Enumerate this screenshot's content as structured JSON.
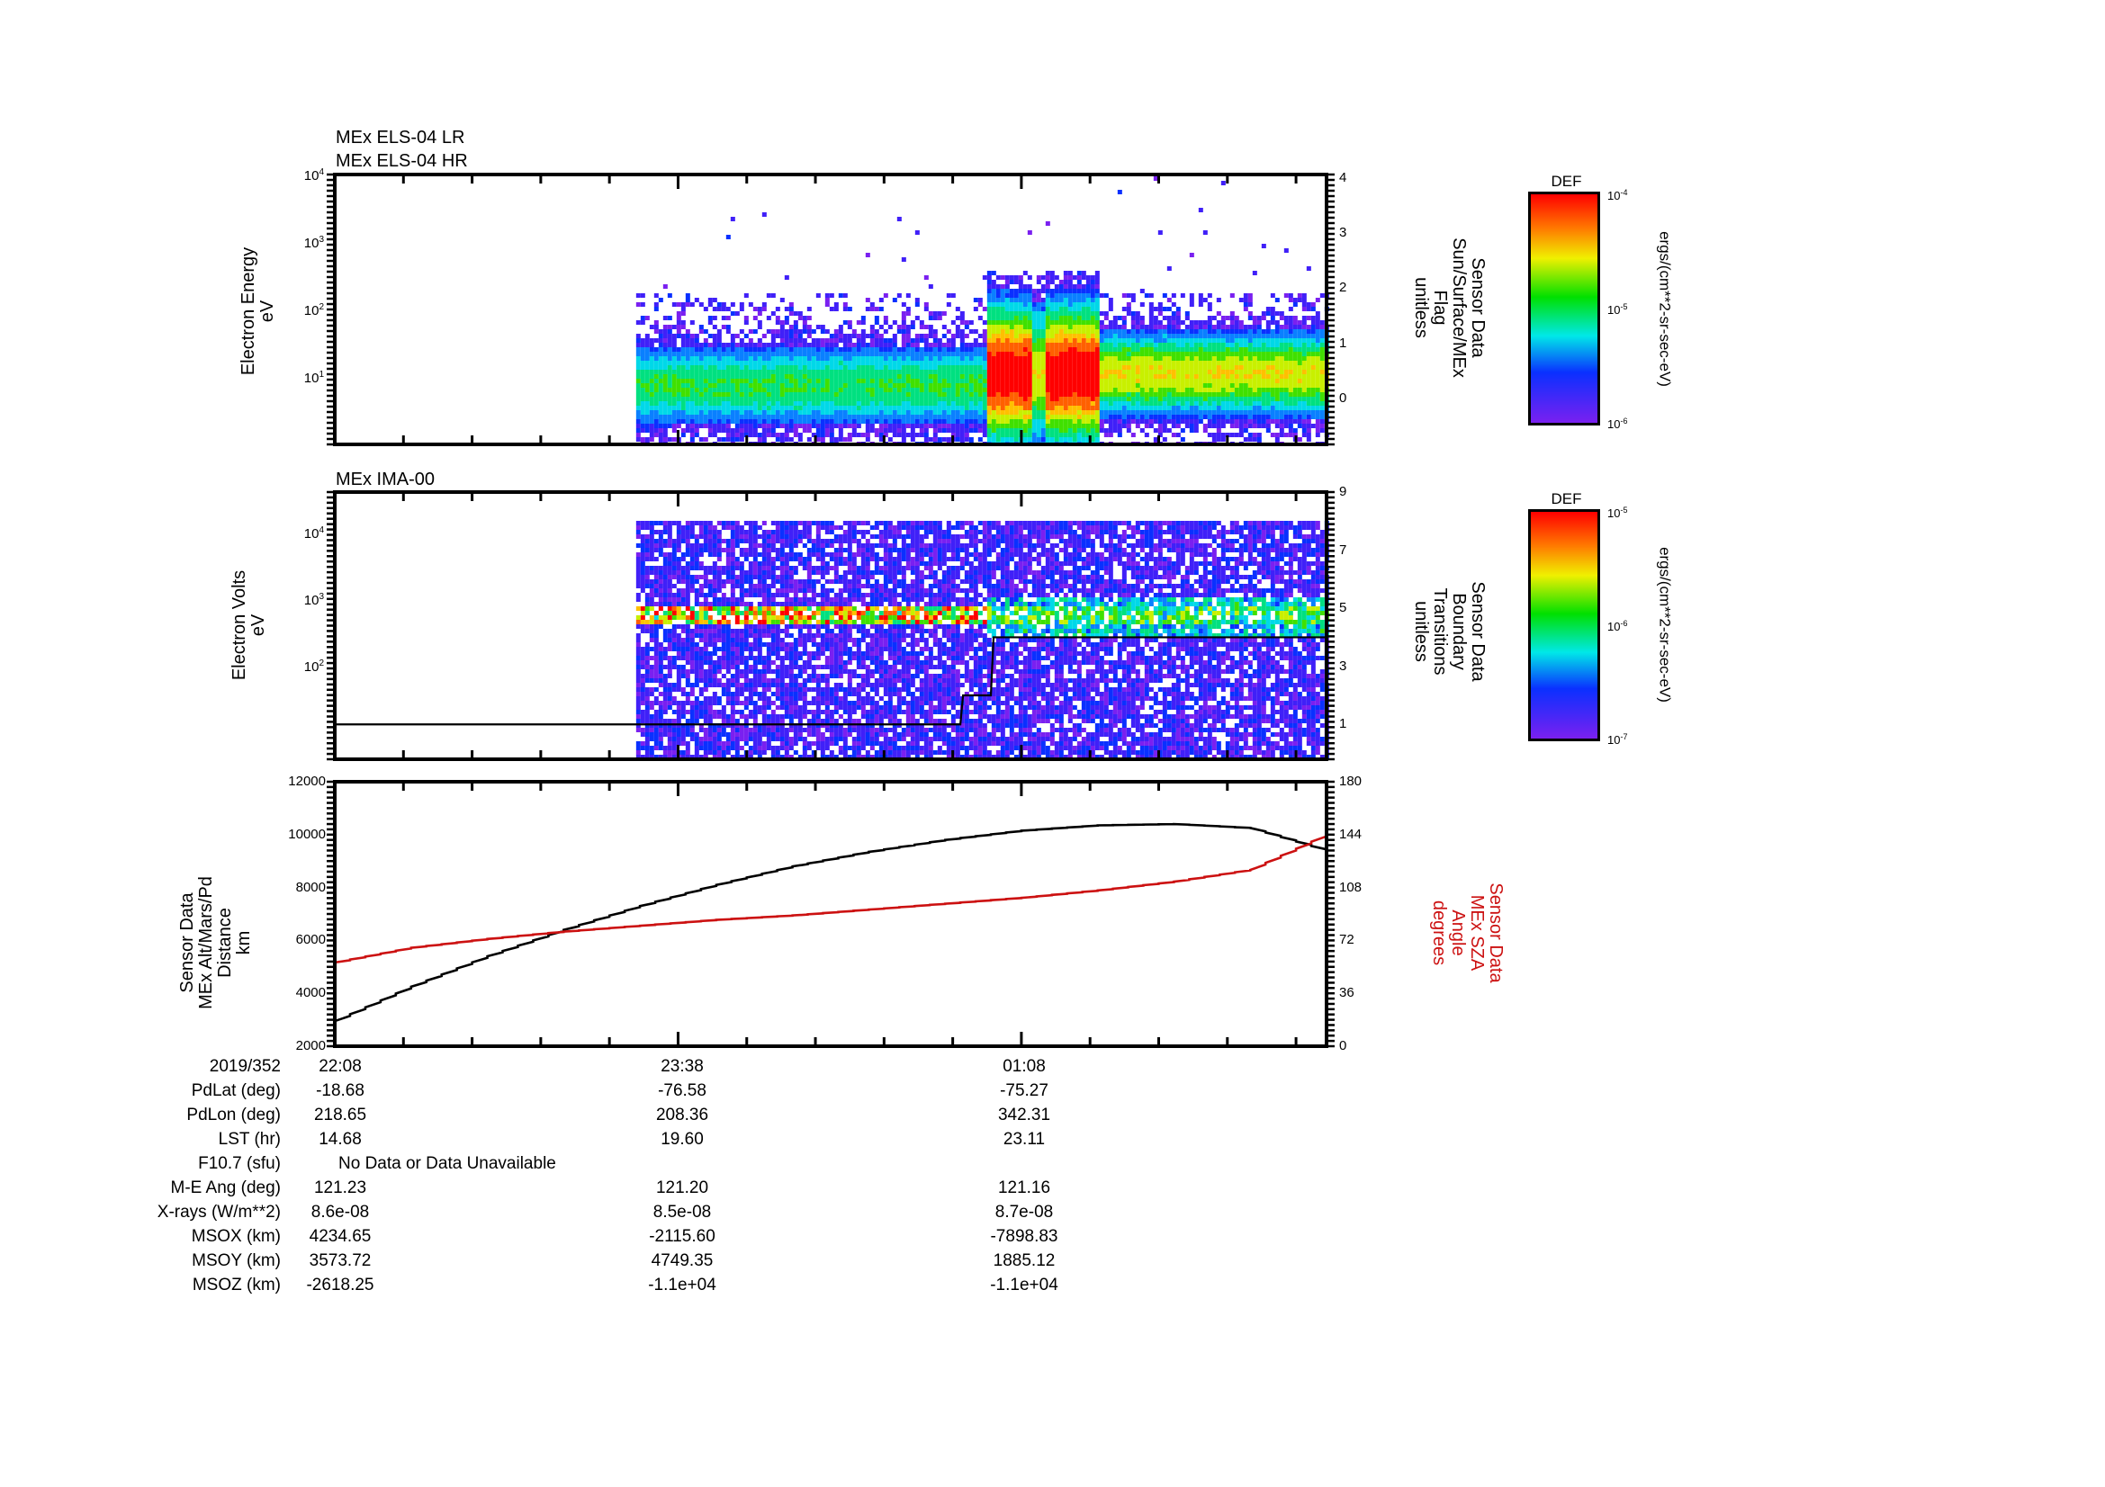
{
  "panels": {
    "els": {
      "title_lines": [
        "MEx ELS-04 LR",
        "MEx ELS-04 HR"
      ],
      "ylabel_lines": [
        "Electron Energy",
        "eV"
      ],
      "yticks": [
        {
          "base": "10",
          "exp": "4"
        },
        {
          "base": "10",
          "exp": "3"
        },
        {
          "base": "10",
          "exp": "2"
        },
        {
          "base": "10",
          "exp": "1"
        }
      ],
      "right_ticks": [
        "4",
        "3",
        "2",
        "1",
        "0"
      ],
      "right_label_lines": [
        "Sensor Data",
        "Sun/Surface/MEx",
        "Flag",
        "unitless"
      ],
      "colorbar": {
        "title": "DEF",
        "ticks": [
          {
            "base": "10",
            "exp": "-4"
          },
          {
            "base": "10",
            "exp": "-5"
          },
          {
            "base": "10",
            "exp": "-6"
          }
        ],
        "unit": "ergs/(cm**2-sr-sec-eV)"
      }
    },
    "ima": {
      "title": "MEx IMA-00",
      "ylabel_lines": [
        "Electron Volts",
        "eV"
      ],
      "yticks": [
        {
          "base": "10",
          "exp": "4"
        },
        {
          "base": "10",
          "exp": "3"
        },
        {
          "base": "10",
          "exp": "2"
        }
      ],
      "right_ticks": [
        "9",
        "7",
        "5",
        "3",
        "1"
      ],
      "right_label_lines": [
        "Sensor Data",
        "Boundary",
        "Transitions",
        "unitless"
      ],
      "colorbar": {
        "title": "DEF",
        "ticks": [
          {
            "base": "10",
            "exp": "-5"
          },
          {
            "base": "10",
            "exp": "-6"
          },
          {
            "base": "10",
            "exp": "-7"
          }
        ],
        "unit": "ergs/(cm**2-sr-sec-eV)"
      }
    },
    "orbit": {
      "ylabel_lines": [
        "Sensor Data",
        "MEx Alt/Mars/Pd",
        "Distance",
        "km"
      ],
      "yticks": [
        "12000",
        "10000",
        "8000",
        "6000",
        "4000",
        "2000"
      ],
      "right_ticks": [
        "180",
        "144",
        "108",
        "72",
        "36",
        "0"
      ],
      "right_label_lines": [
        "Sensor Data",
        "MEx SZA",
        "Angle",
        "degrees"
      ],
      "right_label_color": "#cc1111"
    }
  },
  "ephemeris": {
    "rows": [
      {
        "label": "2019/352",
        "values": [
          "22:08",
          "23:38",
          "01:08"
        ]
      },
      {
        "label": "PdLat (deg)",
        "values": [
          "-18.68",
          "-76.58",
          "-75.27"
        ]
      },
      {
        "label": "PdLon (deg)",
        "values": [
          "218.65",
          "208.36",
          "342.31"
        ]
      },
      {
        "label": "LST (hr)",
        "values": [
          "14.68",
          "19.60",
          "23.11"
        ]
      },
      {
        "label": "F10.7 (sfu)",
        "values": [
          "No Data or Data Unavailable"
        ]
      },
      {
        "label": "M-E Ang (deg)",
        "values": [
          "121.23",
          "121.20",
          "121.16"
        ]
      },
      {
        "label": "X-rays (W/m**2)",
        "values": [
          "8.6e-08",
          "8.5e-08",
          "8.7e-08"
        ]
      },
      {
        "label": "MSOX (km)",
        "values": [
          "4234.65",
          "-2115.60",
          "-7898.83"
        ]
      },
      {
        "label": "MSOY (km)",
        "values": [
          "3573.72",
          "4749.35",
          "1885.12"
        ]
      },
      {
        "label": "MSOZ (km)",
        "values": [
          "-2618.25",
          "-1.1e+04",
          "-1.1e+04"
        ]
      }
    ]
  },
  "chart_data": [
    {
      "type": "heatmap",
      "title": "MEx ELS-04 LR / MEx ELS-04 HR",
      "ylabel": "Electron Energy (eV)",
      "yscale": "log",
      "ylim": [
        1,
        10000
      ],
      "x_ticks": [
        "22:08",
        "23:38",
        "01:08"
      ],
      "x_minutes_range": [
        0,
        260
      ],
      "data_start_minute": 79,
      "colorbar": {
        "label": "DEF ergs/(cm**2-sr-sec-eV)",
        "range": [
          1e-06,
          0.0001
        ]
      },
      "features": [
        {
          "minutes": [
            79,
            170
          ],
          "peak_energy_eV": 8,
          "level": "cyan-green",
          "description": "steady low-energy electron band"
        },
        {
          "minutes": [
            170,
            200
          ],
          "peak_energy_eV": 12,
          "level": "red",
          "description": "intense burst up to ~300 eV"
        },
        {
          "minutes": [
            200,
            260
          ],
          "peak_energy_eV": 12,
          "level": "yellow-green",
          "description": "elevated band 5-30 eV"
        }
      ],
      "right_axis": {
        "label": "Sensor Data Sun/Surface/MEx Flag unitless",
        "ticks": [
          0,
          1,
          2,
          3,
          4
        ]
      }
    },
    {
      "type": "heatmap",
      "title": "MEx IMA-00",
      "ylabel": "Electron Volts (eV)",
      "yscale": "log",
      "ylim": [
        4,
        40000
      ],
      "x_ticks": [
        "22:08",
        "23:38",
        "01:08"
      ],
      "x_minutes_range": [
        0,
        260
      ],
      "data_start_minute": 79,
      "colorbar": {
        "label": "DEF ergs/(cm**2-sr-sec-eV)",
        "range": [
          1e-07,
          1e-05
        ]
      },
      "features": [
        {
          "minutes": [
            79,
            260
          ],
          "peak_energy_eV": 600,
          "level": "red-to-cyan",
          "description": "ion band near 600 eV"
        }
      ],
      "boundary_line": {
        "label": "Sensor Data Boundary Transitions unitless",
        "right_ticks": [
          1,
          3,
          5,
          7,
          9
        ],
        "steps": [
          {
            "minute": 0,
            "value": 1
          },
          {
            "minute": 164,
            "value": 2
          },
          {
            "minute": 172,
            "value": 4
          },
          {
            "minute": 260,
            "value": 4
          }
        ]
      }
    },
    {
      "type": "line",
      "x_ticks": [
        "22:08",
        "23:38",
        "01:08"
      ],
      "x_minutes_range": [
        0,
        260
      ],
      "series": [
        {
          "name": "MEx Alt/Mars/Pd Distance (km)",
          "axis": "left",
          "color": "#000000",
          "x": [
            0,
            20,
            40,
            60,
            80,
            100,
            120,
            140,
            160,
            180,
            200,
            220,
            240,
            260
          ],
          "values": [
            2950,
            4250,
            5400,
            6400,
            7300,
            8100,
            8800,
            9350,
            9800,
            10150,
            10350,
            10400,
            10250,
            9400
          ]
        },
        {
          "name": "MEx SZA Angle (degrees)",
          "axis": "right",
          "color": "#cc1111",
          "x": [
            0,
            20,
            40,
            60,
            80,
            100,
            120,
            140,
            160,
            180,
            200,
            220,
            240,
            260
          ],
          "values": [
            57,
            67,
            73,
            78,
            82,
            86,
            89,
            93,
            97,
            101,
            106,
            112,
            120,
            144
          ]
        }
      ],
      "ylim_left": [
        2000,
        12000
      ],
      "ylim_right": [
        0,
        180
      ],
      "ylabel_left": "Sensor Data MEx Alt/Mars/Pd Distance km",
      "ylabel_right": "Sensor Data MEx SZA Angle degrees"
    }
  ]
}
